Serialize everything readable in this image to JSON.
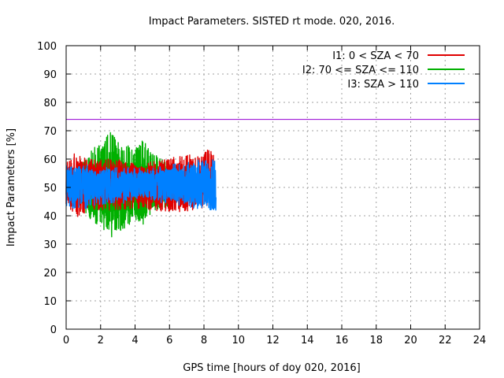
{
  "chart_data": {
    "type": "line",
    "title": "Impact Parameters. SISTED rt mode. 020, 2016.",
    "xlabel": "GPS time [hours of doy 020, 2016]",
    "ylabel": "Impact Parameters [%]",
    "xlim": [
      0,
      24
    ],
    "ylim": [
      0,
      100
    ],
    "xticks": [
      0,
      2,
      4,
      6,
      8,
      10,
      12,
      14,
      16,
      18,
      20,
      22,
      24
    ],
    "yticks": [
      0,
      10,
      20,
      30,
      40,
      50,
      60,
      70,
      80,
      90,
      100
    ],
    "grid": true,
    "legend_position": "top-right",
    "reference_line": {
      "y": 74,
      "color": "#9400d3"
    },
    "series": [
      {
        "name": "I1: 0 < SZA < 70",
        "color": "#e00000",
        "x_range": [
          0,
          8.6
        ],
        "center": 51,
        "amplitude_range": [
          40,
          64
        ],
        "envelope": [
          {
            "x": 0.0,
            "low": 43,
            "high": 59
          },
          {
            "x": 0.5,
            "low": 39,
            "high": 62
          },
          {
            "x": 1.5,
            "low": 42,
            "high": 60
          },
          {
            "x": 3.0,
            "low": 42,
            "high": 60
          },
          {
            "x": 5.0,
            "low": 42,
            "high": 59
          },
          {
            "x": 6.5,
            "low": 41,
            "high": 61
          },
          {
            "x": 7.5,
            "low": 42,
            "high": 62
          },
          {
            "x": 8.6,
            "low": 44,
            "high": 64
          }
        ]
      },
      {
        "name": "I2: 70 <= SZA <= 110",
        "color": "#00b000",
        "x_range": [
          0.9,
          6.3
        ],
        "center": 50,
        "amplitude_range": [
          30,
          70
        ],
        "envelope": [
          {
            "x": 0.9,
            "low": 42,
            "high": 58
          },
          {
            "x": 1.5,
            "low": 38,
            "high": 64
          },
          {
            "x": 2.0,
            "low": 36,
            "high": 65
          },
          {
            "x": 2.6,
            "low": 32,
            "high": 70
          },
          {
            "x": 3.0,
            "low": 34,
            "high": 66
          },
          {
            "x": 4.0,
            "low": 38,
            "high": 64
          },
          {
            "x": 4.5,
            "low": 36,
            "high": 67
          },
          {
            "x": 5.0,
            "low": 42,
            "high": 62
          },
          {
            "x": 5.6,
            "low": 42,
            "high": 60
          },
          {
            "x": 6.3,
            "low": 44,
            "high": 58
          }
        ]
      },
      {
        "name": "I3: SZA > 110",
        "color": "#0080ff",
        "x_range": [
          0,
          8.7
        ],
        "center": 51,
        "amplitude_range": [
          40,
          61
        ],
        "envelope": [
          {
            "x": 0.0,
            "low": 43,
            "high": 58
          },
          {
            "x": 1.0,
            "low": 42,
            "high": 58
          },
          {
            "x": 2.0,
            "low": 44,
            "high": 57
          },
          {
            "x": 3.0,
            "low": 44,
            "high": 57
          },
          {
            "x": 4.0,
            "low": 45,
            "high": 57
          },
          {
            "x": 5.0,
            "low": 45,
            "high": 57
          },
          {
            "x": 6.0,
            "low": 44,
            "high": 58
          },
          {
            "x": 7.0,
            "low": 43,
            "high": 59
          },
          {
            "x": 8.0,
            "low": 42,
            "high": 60
          },
          {
            "x": 8.7,
            "low": 42,
            "high": 60
          }
        ]
      }
    ]
  }
}
